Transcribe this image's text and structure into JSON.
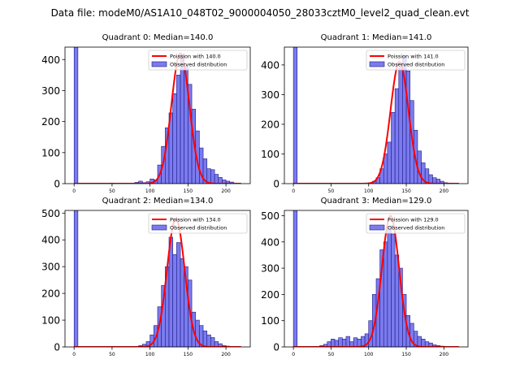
{
  "suptitle": "Data file: modeM0/AS1A10_048T02_9000004050_28033cztM0_level2_quad_clean.evt",
  "colors": {
    "bar_fill": "#7b7bee",
    "bar_edge": "#1a1a8a",
    "fit_line": "#ff0000",
    "axis": "#000000"
  },
  "chart_data": [
    {
      "type": "bar",
      "title": "Quadrant 0: Median=140.0",
      "legend": {
        "placement": "top-right",
        "entries": [
          "Poission with 140.0",
          "Observed distribution"
        ]
      },
      "xlim": [
        -12,
        232
      ],
      "ylim": [
        0,
        440
      ],
      "xticks": [
        0,
        50,
        100,
        150,
        200
      ],
      "yticks": [
        0,
        100,
        200,
        300,
        400
      ],
      "median": 140,
      "hist": {
        "edges": [
          0,
          5,
          10,
          15,
          20,
          25,
          30,
          35,
          40,
          45,
          50,
          55,
          60,
          65,
          70,
          75,
          80,
          85,
          90,
          95,
          100,
          105,
          110,
          115,
          120,
          125,
          130,
          135,
          140,
          145,
          150,
          155,
          160,
          165,
          170,
          175,
          180,
          185,
          190,
          195,
          200,
          205,
          210,
          215,
          220
        ],
        "counts": [
          440,
          0,
          0,
          0,
          0,
          0,
          0,
          0,
          0,
          0,
          0,
          0,
          0,
          0,
          0,
          1,
          4,
          8,
          3,
          6,
          15,
          12,
          60,
          120,
          180,
          228,
          290,
          350,
          415,
          380,
          320,
          240,
          170,
          115,
          80,
          48,
          45,
          30,
          20,
          12,
          8,
          5,
          2,
          0
        ]
      },
      "fit": {
        "mean": 140,
        "peak": 420
      }
    },
    {
      "type": "bar",
      "title": "Quadrant 1: Median=141.0",
      "legend": {
        "placement": "top-right",
        "entries": [
          "Poission with 141.0",
          "Observed distribution"
        ]
      },
      "xlim": [
        -12,
        232
      ],
      "ylim": [
        0,
        460
      ],
      "xticks": [
        0,
        50,
        100,
        150,
        200
      ],
      "yticks": [
        0,
        100,
        200,
        300,
        400
      ],
      "median": 141,
      "hist": {
        "edges": [
          0,
          5,
          10,
          15,
          20,
          25,
          30,
          35,
          40,
          45,
          50,
          55,
          60,
          65,
          70,
          75,
          80,
          85,
          90,
          95,
          100,
          105,
          110,
          115,
          120,
          125,
          130,
          135,
          140,
          145,
          150,
          155,
          160,
          165,
          170,
          175,
          180,
          185,
          190,
          195,
          200,
          205,
          210,
          215,
          220
        ],
        "counts": [
          460,
          0,
          0,
          0,
          0,
          0,
          0,
          0,
          0,
          0,
          0,
          0,
          0,
          0,
          0,
          0,
          0,
          0,
          0,
          2,
          3,
          8,
          20,
          50,
          100,
          140,
          240,
          320,
          390,
          430,
          380,
          280,
          180,
          110,
          70,
          50,
          30,
          20,
          15,
          8,
          3,
          2,
          1,
          0
        ]
      },
      "fit": {
        "mean": 141,
        "peak": 410
      }
    },
    {
      "type": "bar",
      "title": "Quadrant 2: Median=134.0",
      "legend": {
        "placement": "top-right",
        "entries": [
          "Poission with 134.0",
          "Observed distribution"
        ]
      },
      "xlim": [
        -12,
        232
      ],
      "ylim": [
        0,
        510
      ],
      "xticks": [
        0,
        50,
        100,
        150,
        200
      ],
      "yticks": [
        0,
        100,
        200,
        300,
        400,
        500
      ],
      "median": 134,
      "hist": {
        "edges": [
          0,
          5,
          10,
          15,
          20,
          25,
          30,
          35,
          40,
          45,
          50,
          55,
          60,
          65,
          70,
          75,
          80,
          85,
          90,
          95,
          100,
          105,
          110,
          115,
          120,
          125,
          130,
          135,
          140,
          145,
          150,
          155,
          160,
          165,
          170,
          175,
          180,
          185,
          190,
          195,
          200,
          205,
          210,
          215,
          220
        ],
        "counts": [
          510,
          0,
          0,
          0,
          0,
          0,
          0,
          0,
          0,
          0,
          0,
          0,
          0,
          0,
          0,
          0,
          2,
          5,
          10,
          20,
          45,
          80,
          150,
          230,
          300,
          410,
          345,
          390,
          330,
          300,
          250,
          130,
          100,
          80,
          60,
          45,
          35,
          20,
          12,
          5,
          3,
          1,
          0,
          0
        ]
      },
      "fit": {
        "mean": 134,
        "peak": 480
      }
    },
    {
      "type": "bar",
      "title": "Quadrant 3: Median=129.0",
      "legend": {
        "placement": "top-right",
        "entries": [
          "Poission with 129.0",
          "Observed distribution"
        ]
      },
      "xlim": [
        -12,
        232
      ],
      "ylim": [
        0,
        520
      ],
      "xticks": [
        0,
        50,
        100,
        150,
        200
      ],
      "yticks": [
        0,
        100,
        200,
        300,
        400,
        500
      ],
      "median": 129,
      "hist": {
        "edges": [
          0,
          5,
          10,
          15,
          20,
          25,
          30,
          35,
          40,
          45,
          50,
          55,
          60,
          65,
          70,
          75,
          80,
          85,
          90,
          95,
          100,
          105,
          110,
          115,
          120,
          125,
          130,
          135,
          140,
          145,
          150,
          155,
          160,
          165,
          170,
          175,
          180,
          185,
          190,
          195,
          200,
          205,
          210,
          215,
          220
        ],
        "counts": [
          520,
          0,
          0,
          0,
          0,
          0,
          0,
          5,
          10,
          20,
          30,
          25,
          35,
          30,
          40,
          20,
          35,
          30,
          40,
          50,
          100,
          200,
          260,
          370,
          400,
          460,
          430,
          350,
          300,
          200,
          120,
          90,
          60,
          40,
          30,
          20,
          15,
          8,
          5,
          3,
          1,
          0,
          0,
          0
        ]
      },
      "fit": {
        "mean": 129,
        "peak": 500
      }
    }
  ]
}
